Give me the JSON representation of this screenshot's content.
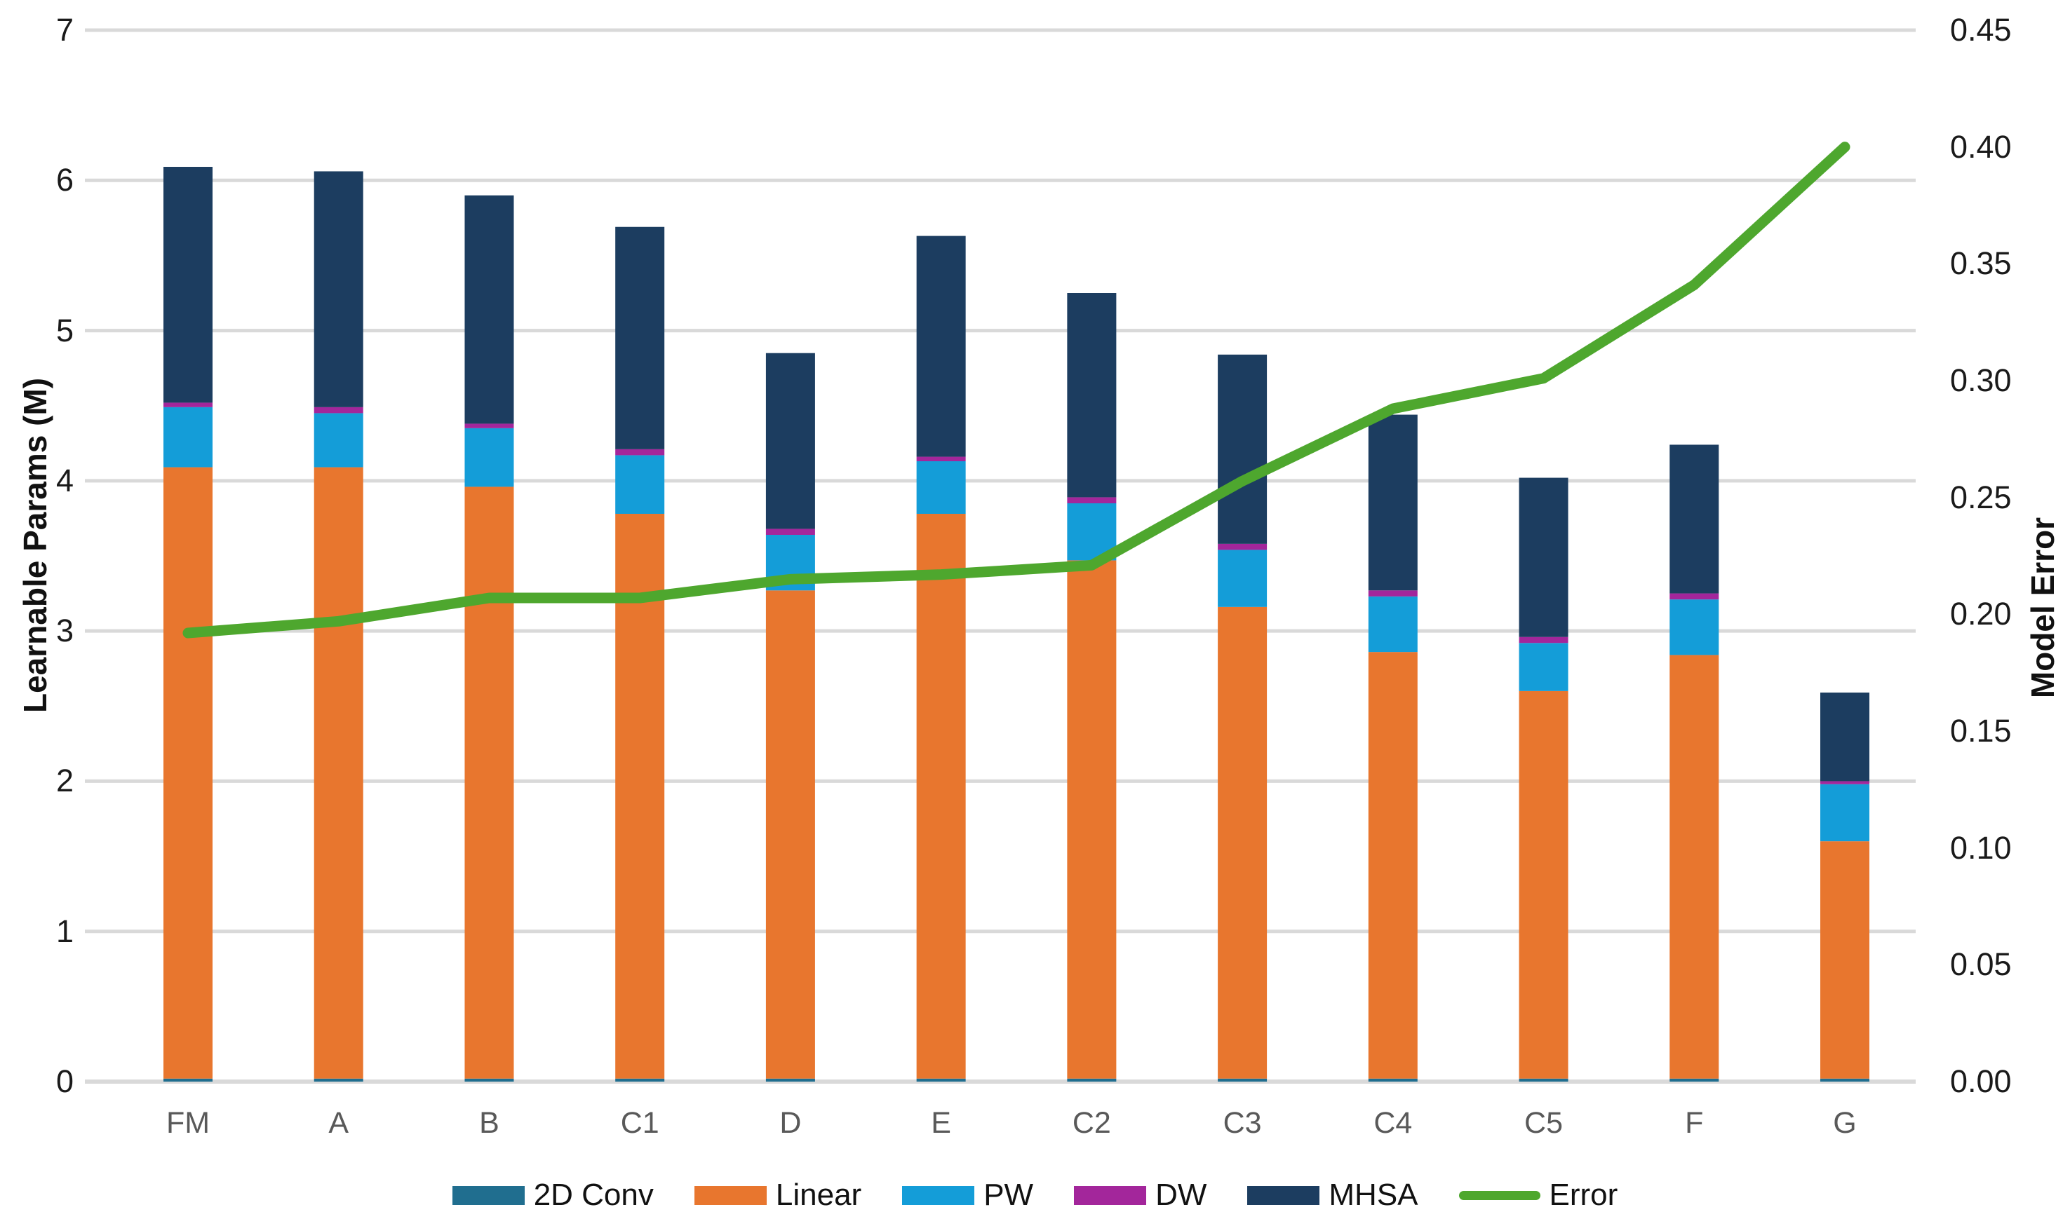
{
  "chart_data": {
    "type": "bar",
    "subtype": "stacked-bar-with-line-combo",
    "categories": [
      "FM",
      "A",
      "B",
      "C1",
      "D",
      "E",
      "C2",
      "C3",
      "C4",
      "C5",
      "F",
      "G"
    ],
    "series": [
      {
        "name": "2D Conv",
        "color": "#206E8F",
        "values": [
          0.02,
          0.02,
          0.02,
          0.02,
          0.02,
          0.02,
          0.02,
          0.02,
          0.02,
          0.02,
          0.02,
          0.02
        ]
      },
      {
        "name": "Linear",
        "color": "#E8762E",
        "values": [
          4.07,
          4.07,
          3.94,
          3.76,
          3.25,
          3.76,
          3.45,
          3.14,
          2.84,
          2.58,
          2.82,
          1.58
        ]
      },
      {
        "name": "PW",
        "color": "#149DD8",
        "values": [
          0.4,
          0.36,
          0.39,
          0.39,
          0.37,
          0.35,
          0.38,
          0.38,
          0.37,
          0.32,
          0.37,
          0.38
        ]
      },
      {
        "name": "DW",
        "color": "#A3269B",
        "values": [
          0.03,
          0.04,
          0.03,
          0.04,
          0.04,
          0.03,
          0.04,
          0.04,
          0.04,
          0.04,
          0.04,
          0.02
        ]
      },
      {
        "name": "MHSA",
        "color": "#1C3D60",
        "values": [
          1.57,
          1.57,
          1.52,
          1.48,
          1.17,
          1.47,
          1.36,
          1.26,
          1.17,
          1.06,
          0.99,
          0.59
        ]
      }
    ],
    "bar_totals": [
      6.09,
      6.06,
      5.9,
      5.69,
      4.85,
      5.63,
      5.25,
      4.84,
      4.44,
      4.02,
      4.24,
      2.59
    ],
    "line": {
      "name": "Error",
      "color": "#4EA72E",
      "values": [
        0.192,
        0.197,
        0.207,
        0.207,
        0.215,
        0.217,
        0.221,
        0.257,
        0.288,
        0.301,
        0.341,
        0.4
      ]
    },
    "left_axis": {
      "title": "Learnable Params (M)",
      "min": 0,
      "max": 7,
      "step": 1,
      "ticks": [
        "0",
        "1",
        "2",
        "3",
        "4",
        "5",
        "6",
        "7"
      ]
    },
    "right_axis": {
      "title": "Model Error",
      "min": 0,
      "max": 0.45,
      "step": 0.05,
      "ticks": [
        "0.00",
        "0.05",
        "0.10",
        "0.15",
        "0.20",
        "0.25",
        "0.30",
        "0.35",
        "0.40",
        "0.45"
      ]
    },
    "grid": {
      "show_horizontal": true,
      "color": "#D9D9D9"
    },
    "legend_position": "bottom"
  }
}
